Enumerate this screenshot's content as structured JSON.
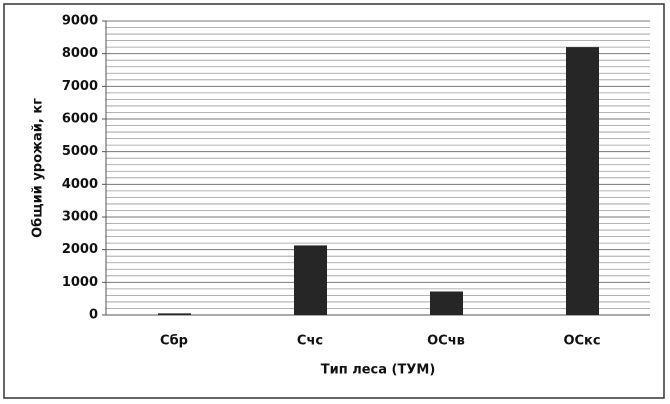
{
  "chart_data": {
    "type": "bar",
    "x_label": "Тип леса (ТУМ)",
    "y_label": "Общий урожай, кг",
    "categories": [
      "Сбр",
      "Счс",
      "ОСчв",
      "ОСкс"
    ],
    "values": [
      50,
      2130,
      720,
      8200
    ],
    "color": "#262626",
    "ylim": [
      0,
      9000
    ],
    "yticks": [
      0,
      1000,
      2000,
      3000,
      4000,
      5000,
      6000,
      7000,
      8000,
      9000
    ],
    "grid": true
  }
}
